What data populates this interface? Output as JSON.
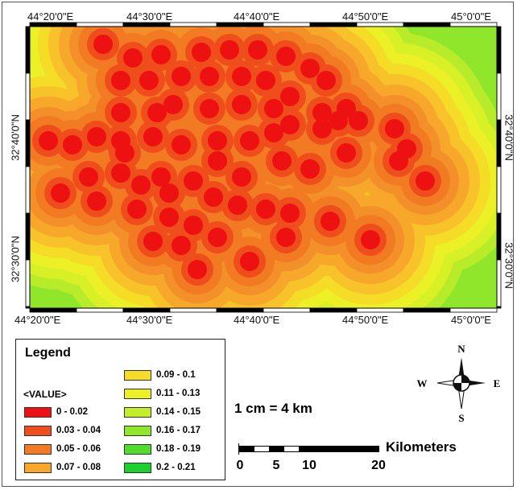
{
  "coordinates": {
    "top": [
      "44°20'0\"E",
      "44°30'0\"E",
      "44°40'0\"E",
      "44°50'0\"E",
      "45°0'0\"E"
    ],
    "bottom": [
      "44°20'0\"E",
      "44°30'0\"E",
      "44°40'0\"E",
      "44°50'0\"E",
      "45°0'0\"E"
    ],
    "left": [
      "32°40'0\"N",
      "32°30'0\"N"
    ],
    "right": [
      "32°40'0\"N",
      "32°30'0\"N"
    ]
  },
  "legend": {
    "title": "Legend",
    "field": "<VALUE>",
    "classes": [
      {
        "label": "0 - 0.02",
        "color": "#ee1111"
      },
      {
        "label": "0.03 - 0.04",
        "color": "#f04d1c"
      },
      {
        "label": "0.05 - 0.06",
        "color": "#f27a22"
      },
      {
        "label": "0.07 - 0.08",
        "color": "#f7a82a"
      },
      {
        "label": "0.09 - 0.1",
        "color": "#f5dc26"
      },
      {
        "label": "0.11 - 0.13",
        "color": "#ecf026"
      },
      {
        "label": "0.14 - 0.15",
        "color": "#c4ee2a"
      },
      {
        "label": "0.16 - 0.17",
        "color": "#8fe62a"
      },
      {
        "label": "0.18 - 0.19",
        "color": "#52dc2c"
      },
      {
        "label": "0.2 - 0.21",
        "color": "#1ed02e"
      }
    ]
  },
  "scale": {
    "ratio": "1 cm = 4 km",
    "unit": "Kilometers",
    "ticks": [
      "0",
      "5",
      "10",
      "20"
    ]
  },
  "compass": {
    "n": "N",
    "s": "S",
    "e": "E",
    "w": "W"
  }
}
